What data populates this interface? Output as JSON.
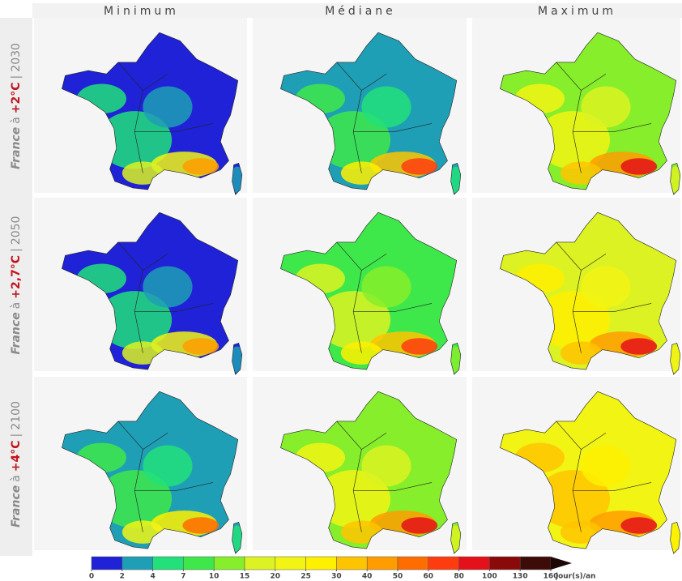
{
  "columns": [
    "Minimum",
    "Médiane",
    "Maximum"
  ],
  "rows": [
    {
      "region": "France",
      "preposition": "à",
      "warming": "+2°C",
      "separator": "|",
      "horizon": "2030"
    },
    {
      "region": "France",
      "preposition": "à",
      "warming": "+2,7°C",
      "separator": "|",
      "horizon": "2050"
    },
    {
      "region": "France",
      "preposition": "à",
      "warming": "+4°C",
      "separator": "|",
      "horizon": "2100"
    }
  ],
  "colorbar": {
    "ticks": [
      0,
      2,
      4,
      7,
      10,
      15,
      20,
      25,
      30,
      40,
      50,
      60,
      80,
      100,
      130,
      160
    ],
    "unit": "jour(s)/an",
    "colors": [
      "#1f22d6",
      "#1e9fb6",
      "#22e07a",
      "#3ee84a",
      "#86ee2a",
      "#dcf222",
      "#f2f414",
      "#fff000",
      "#ffc400",
      "#ff9c00",
      "#ff6c00",
      "#ff3c10",
      "#e4101a",
      "#8a0a0a",
      "#3e0c08"
    ],
    "arrow_color": "#1c0606"
  }
}
